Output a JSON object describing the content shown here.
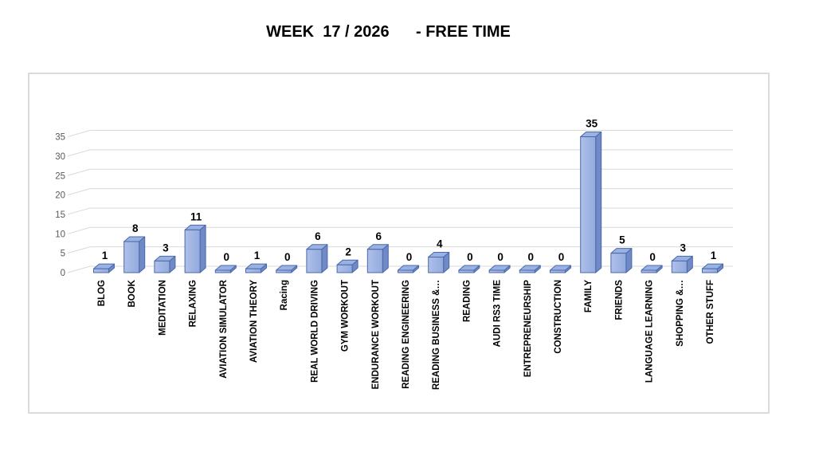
{
  "chart_data": {
    "type": "bar",
    "variant": "3d-column",
    "title": "WEEK  17 / 2026      - FREE TIME",
    "categories": [
      "BLOG",
      "BOOK",
      "MEDITATION",
      "RELAXING",
      "AVIATION SIMULATOR",
      "AVIATION THEORY",
      "Racing",
      "REAL WORLD DRIVING",
      "GYM WORKOUT",
      "ENDURANCE WORKOUT",
      "READING ENGINEERING",
      "READING BUSINESS &…",
      "READING",
      "AUDI RS3 TIME",
      "ENTREPRENEURSHIP",
      "CONSTRUCTION",
      "FAMILY",
      "FRIENDS",
      "LANGUAGE LEARNING",
      "SHOPPING &…",
      "OTHER STUFF"
    ],
    "values": [
      1,
      8,
      3,
      11,
      0,
      1,
      0,
      6,
      2,
      6,
      0,
      4,
      0,
      0,
      0,
      0,
      35,
      5,
      0,
      3,
      1
    ],
    "data_labels_shown": true,
    "xlabel": "",
    "ylabel": "",
    "ylim": [
      0,
      35
    ],
    "yticks": [
      0,
      5,
      10,
      15,
      20,
      25,
      30,
      35
    ],
    "grid": true,
    "legend": false,
    "colors": {
      "bar_face_light": "#AFC0EA",
      "bar_face": "#92AADD",
      "bar_top": "#9AB1E3",
      "bar_side": "#7189C6",
      "bar_border": "#4A69A8",
      "gridline": "#D9D9D9",
      "tick_label": "#595959",
      "data_label": "#000000",
      "category_label": "#000000",
      "plot_border": "#DBDBDB",
      "title_color": "#000000"
    }
  }
}
